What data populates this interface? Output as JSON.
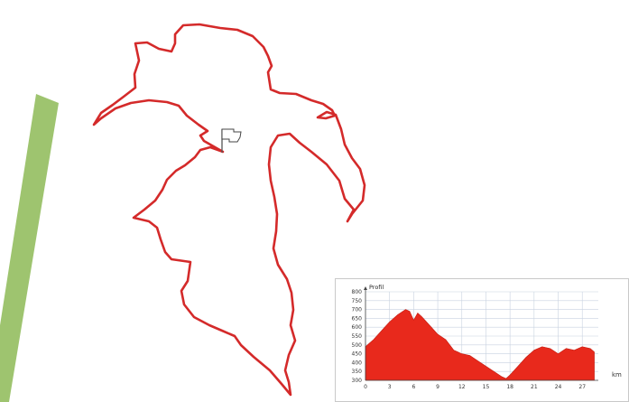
{
  "route_color": "#d42a2a",
  "road_color": "#9ec46f",
  "start_marker_icon": "flag-icon",
  "elevation_profile": {
    "title": "Profil",
    "unit": "km",
    "fill_color": "#e8291c",
    "chart_data": {
      "type": "area",
      "title": "Profil",
      "xlabel": "km",
      "ylabel": "",
      "xlim": [
        0,
        29
      ],
      "ylim": [
        300,
        800
      ],
      "x_ticks": [
        0,
        3,
        6,
        9,
        12,
        15,
        18,
        21,
        24,
        27
      ],
      "y_ticks": [
        300,
        350,
        400,
        450,
        500,
        550,
        600,
        650,
        700,
        750,
        800
      ],
      "grid": true,
      "x": [
        0,
        0.5,
        1,
        2,
        3,
        4,
        5,
        5.5,
        6,
        6.5,
        7,
        8,
        9,
        10,
        11,
        12,
        13,
        14,
        15,
        16,
        17,
        17.5,
        18,
        19,
        20,
        21,
        22,
        23,
        24,
        25,
        26,
        27,
        28,
        28.5
      ],
      "y": [
        490,
        510,
        530,
        580,
        630,
        670,
        700,
        690,
        640,
        680,
        660,
        610,
        560,
        530,
        470,
        450,
        440,
        410,
        380,
        350,
        320,
        310,
        330,
        380,
        430,
        470,
        490,
        480,
        450,
        480,
        470,
        490,
        480,
        460
      ]
    }
  }
}
